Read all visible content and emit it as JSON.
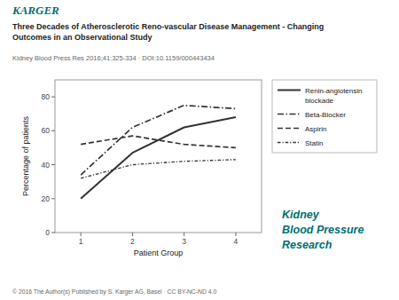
{
  "chart_data": {
    "type": "line",
    "title": "Three Decades of Atherosclerotic Reno-vascular Disease Management - Changing\nOutcomes in an Observational Study",
    "subtitle": "Kidney Blood Press Res 2016;41:325-334 · DOI:10.1159/000443434",
    "x_label": "Patient Group",
    "y_label": "Percentage of patients",
    "x": [
      1,
      2,
      3,
      4
    ],
    "xlim": [
      0.5,
      4.5
    ],
    "xticks": [
      1,
      2,
      3,
      4
    ],
    "ylim": [
      0,
      90
    ],
    "yticks": [
      0,
      20,
      40,
      60,
      80
    ],
    "grid": false,
    "legend": "right",
    "series": [
      {
        "name": "Renin-angiotensin\nblockade",
        "color": "#333333",
        "line_style": "solid",
        "values": [
          20,
          47,
          62,
          68
        ]
      },
      {
        "name": "Beta-Blocker",
        "color": "#333333",
        "line_style": "dashdot",
        "values": [
          34,
          62,
          75,
          73
        ]
      },
      {
        "name": "Aspirin",
        "color": "#333333",
        "line_style": "dashed",
        "values": [
          52,
          57,
          52,
          50
        ]
      },
      {
        "name": "Statin",
        "color": "#333333",
        "line_style": "dashdot",
        "values": [
          32,
          40,
          42,
          43
        ]
      }
    ],
    "annotations": [
      {
        "text": "KARGER",
        "color": "#007070"
      },
      {
        "text": "© 2016 The Author(s) Published by S. Karger AG, Basel · CC BY-NC-ND 4.0",
        "color": "#666666"
      },
      {
        "text": "Kidney",
        "color": "#007070"
      },
      {
        "text": "Blood Pressure",
        "color": "#007070"
      },
      {
        "text": "Research",
        "color": "#007070"
      }
    ]
  }
}
